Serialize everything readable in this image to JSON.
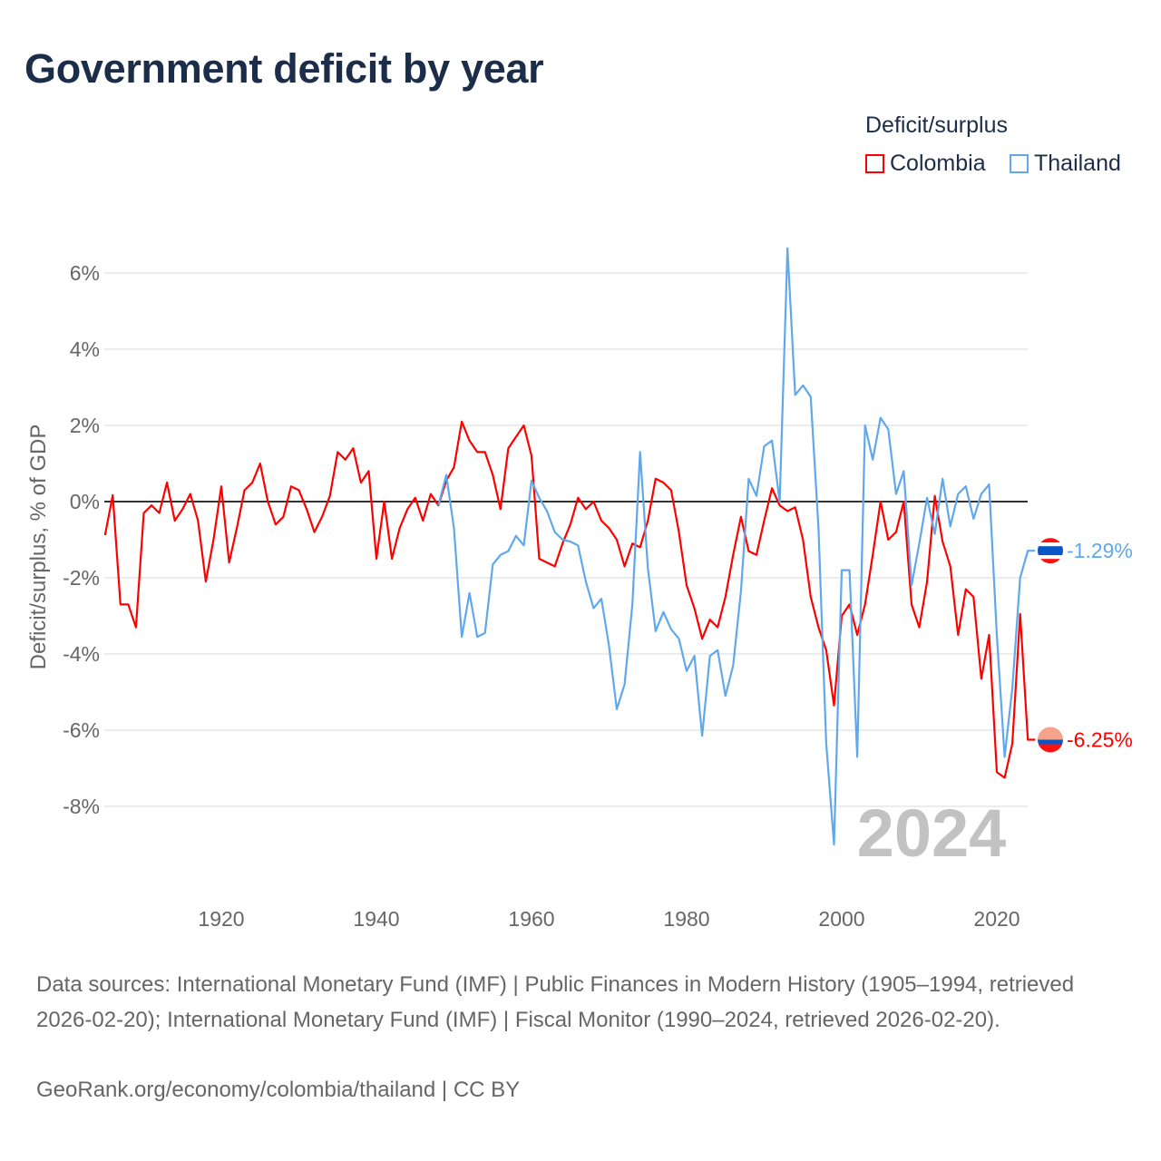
{
  "title": "Government deficit by year",
  "legend": {
    "title": "Deficit/surplus",
    "items": [
      {
        "label": "Colombia",
        "color": "#ff0000"
      },
      {
        "label": "Thailand",
        "color": "#5fa8ec"
      }
    ]
  },
  "footer": {
    "sources": "Data sources: International Monetary Fund (IMF) | Public Finances in Modern History (1905–1994, retrieved 2026-02-20); International Monetary Fund (IMF) | Fiscal Monitor (1990–2024, retrieved 2026-02-20).",
    "credit": "GeoRank.org/economy/colombia/thailand | CC BY"
  },
  "chart_data": {
    "type": "line",
    "title": "Government deficit by year",
    "xlabel": "",
    "ylabel": "Deficit/surplus, % of GDP",
    "xlim": [
      1905,
      2024
    ],
    "ylim": [
      -10,
      7
    ],
    "grid": true,
    "legend_position": "top-right",
    "x_ticks": [
      "1920",
      "1940",
      "1960",
      "1980",
      "2000",
      "2020"
    ],
    "y_ticks": [
      "6%",
      "4%",
      "2%",
      "0%",
      "-2%",
      "-4%",
      "-6%",
      "-8%"
    ],
    "year_label": "2024",
    "series": [
      {
        "name": "Colombia",
        "color": "#ff0000",
        "start_year": 1905,
        "end_label": "-6.25%",
        "values": [
          -0.88,
          0.17,
          -2.7,
          -2.7,
          -3.3,
          -0.3,
          -0.1,
          -0.3,
          0.5,
          -0.5,
          -0.2,
          0.2,
          -0.5,
          -2.1,
          -1.0,
          0.4,
          -1.6,
          -0.7,
          0.3,
          0.5,
          1.0,
          0.0,
          -0.6,
          -0.4,
          0.4,
          0.3,
          -0.2,
          -0.8,
          -0.4,
          0.15,
          1.3,
          1.1,
          1.4,
          0.5,
          0.8,
          -1.5,
          0.0,
          -1.5,
          -0.7,
          -0.2,
          0.1,
          -0.5,
          0.2,
          -0.1,
          0.55,
          0.9,
          2.1,
          1.6,
          1.3,
          1.3,
          0.7,
          -0.2,
          1.4,
          1.7,
          2.0,
          1.2,
          -1.5,
          -1.6,
          -1.7,
          -1.1,
          -0.6,
          0.1,
          -0.2,
          0.0,
          -0.5,
          -0.7,
          -1.0,
          -1.7,
          -1.1,
          -1.2,
          -0.5,
          0.6,
          0.5,
          0.3,
          -0.8,
          -2.2,
          -2.8,
          -3.6,
          -3.1,
          -3.3,
          -2.5,
          -1.4,
          -0.4,
          -1.3,
          -1.4,
          -0.5,
          0.35,
          -0.1,
          -0.25,
          -0.15,
          -1.0,
          -2.5,
          -3.3,
          -3.9,
          -5.35,
          -3.0,
          -2.7,
          -3.5,
          -2.7,
          -1.4,
          0.0,
          -1.0,
          -0.8,
          0.0,
          -2.7,
          -3.3,
          -2.1,
          0.15,
          -1.05,
          -1.7,
          -3.5,
          -2.3,
          -2.5,
          -4.65,
          -3.5,
          -7.1,
          -7.25,
          -6.35,
          -2.95,
          -6.25
        ]
      },
      {
        "name": "Thailand",
        "color": "#5fa8ec",
        "start_year": 1948,
        "end_label": "-1.29%",
        "values": [
          -0.1,
          0.7,
          -0.7,
          -3.55,
          -2.4,
          -3.55,
          -3.45,
          -1.65,
          -1.4,
          -1.3,
          -0.9,
          -1.15,
          0.55,
          0.1,
          -0.25,
          -0.8,
          -1.0,
          -1.05,
          -1.15,
          -2.1,
          -2.8,
          -2.55,
          -3.8,
          -5.45,
          -4.8,
          -2.7,
          1.3,
          -1.75,
          -3.4,
          -2.9,
          -3.35,
          -3.6,
          -4.45,
          -4.05,
          -6.15,
          -4.05,
          -3.9,
          -5.1,
          -4.3,
          -2.35,
          0.6,
          0.15,
          1.45,
          1.6,
          0.0,
          6.65,
          2.8,
          3.05,
          2.75,
          -0.7,
          -6.35,
          -9.0,
          -1.8,
          -1.8,
          -6.7,
          2.0,
          1.1,
          2.2,
          1.9,
          0.2,
          0.8,
          -2.2,
          -1.1,
          0.1,
          -0.85,
          0.6,
          -0.65,
          0.2,
          0.4,
          -0.45,
          0.2,
          0.45,
          -3.5,
          -6.7,
          -4.9,
          -2.0,
          -1.29
        ]
      }
    ]
  }
}
